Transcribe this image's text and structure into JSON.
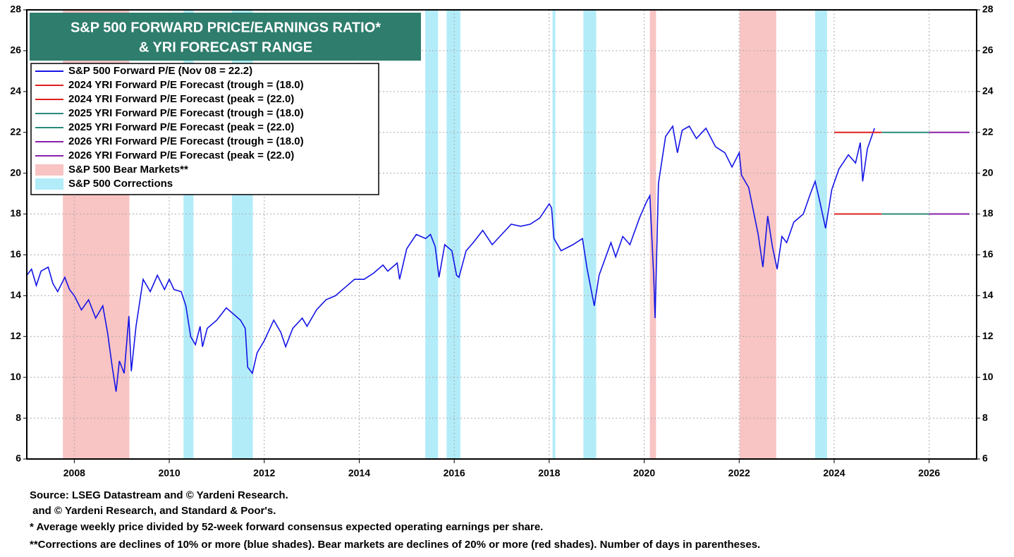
{
  "chart_data": {
    "type": "line",
    "title_lines": [
      "S&P 500 FORWARD PRICE/EARNINGS RATIO*",
      "& YRI FORECAST RANGE"
    ],
    "xlim": [
      2007,
      2027
    ],
    "xticks": [
      2008,
      2010,
      2012,
      2014,
      2016,
      2018,
      2020,
      2022,
      2024,
      2026
    ],
    "ylim": [
      6,
      28
    ],
    "yticks": [
      6,
      8,
      10,
      12,
      14,
      16,
      18,
      20,
      22,
      24,
      26,
      28
    ],
    "y2lim": [
      6,
      28
    ],
    "y2ticks": [
      6,
      8,
      10,
      12,
      14,
      16,
      18,
      20,
      22,
      24,
      26,
      28
    ],
    "grid": true,
    "legend": "upper left",
    "series": [
      {
        "name": "S&P 500 Forward P/E (Nov 08 = 22.2)",
        "color": "#1414e6",
        "x": [
          2007.0,
          2007.1,
          2007.2,
          2007.3,
          2007.45,
          2007.55,
          2007.65,
          2007.8,
          2007.9,
          2008.0,
          2008.15,
          2008.3,
          2008.45,
          2008.6,
          2008.7,
          2008.8,
          2008.88,
          2008.95,
          2009.05,
          2009.15,
          2009.2,
          2009.3,
          2009.45,
          2009.6,
          2009.75,
          2009.9,
          2010.0,
          2010.1,
          2010.25,
          2010.35,
          2010.45,
          2010.55,
          2010.65,
          2010.7,
          2010.8,
          2011.0,
          2011.2,
          2011.35,
          2011.5,
          2011.6,
          2011.65,
          2011.75,
          2011.85,
          2012.0,
          2012.2,
          2012.35,
          2012.45,
          2012.6,
          2012.8,
          2012.9,
          2013.1,
          2013.3,
          2013.5,
          2013.7,
          2013.9,
          2014.1,
          2014.3,
          2014.5,
          2014.6,
          2014.8,
          2014.85,
          2015.0,
          2015.2,
          2015.4,
          2015.5,
          2015.6,
          2015.68,
          2015.8,
          2015.95,
          2016.05,
          2016.1,
          2016.25,
          2016.4,
          2016.6,
          2016.8,
          2017.0,
          2017.2,
          2017.4,
          2017.6,
          2017.8,
          2018.0,
          2018.05,
          2018.1,
          2018.25,
          2018.5,
          2018.7,
          2018.8,
          2018.95,
          2019.05,
          2019.3,
          2019.4,
          2019.55,
          2019.7,
          2019.9,
          2020.05,
          2020.12,
          2020.2,
          2020.23,
          2020.3,
          2020.45,
          2020.6,
          2020.7,
          2020.8,
          2020.95,
          2021.1,
          2021.3,
          2021.5,
          2021.7,
          2021.85,
          2022.0,
          2022.05,
          2022.2,
          2022.4,
          2022.5,
          2022.6,
          2022.7,
          2022.8,
          2022.9,
          2023.0,
          2023.15,
          2023.35,
          2023.5,
          2023.6,
          2023.7,
          2023.82,
          2023.95,
          2024.1,
          2024.3,
          2024.45,
          2024.55,
          2024.6,
          2024.7,
          2024.85
        ],
        "values": [
          15.0,
          15.3,
          14.5,
          15.2,
          15.4,
          14.6,
          14.2,
          14.9,
          14.3,
          14.0,
          13.3,
          13.8,
          12.9,
          13.5,
          12.2,
          10.5,
          9.3,
          10.8,
          10.2,
          13.0,
          10.3,
          12.5,
          14.8,
          14.2,
          15.0,
          14.3,
          14.8,
          14.3,
          14.2,
          13.5,
          12.0,
          11.6,
          12.5,
          11.5,
          12.4,
          12.8,
          13.4,
          13.1,
          12.8,
          12.4,
          10.5,
          10.2,
          11.2,
          11.8,
          12.8,
          12.2,
          11.5,
          12.4,
          12.9,
          12.5,
          13.3,
          13.8,
          14.0,
          14.4,
          14.8,
          14.8,
          15.1,
          15.5,
          15.2,
          15.6,
          14.8,
          16.3,
          17.0,
          16.8,
          17.0,
          16.4,
          14.9,
          16.5,
          16.2,
          15.0,
          14.9,
          16.2,
          16.6,
          17.2,
          16.5,
          17.0,
          17.5,
          17.4,
          17.5,
          17.8,
          18.5,
          18.3,
          16.8,
          16.2,
          16.5,
          16.8,
          15.3,
          13.5,
          15.0,
          16.6,
          15.9,
          16.9,
          16.5,
          17.8,
          18.6,
          18.9,
          15.0,
          12.9,
          19.5,
          21.8,
          22.3,
          21.0,
          22.1,
          22.3,
          21.7,
          22.2,
          21.3,
          21.0,
          20.3,
          21.0,
          19.9,
          19.3,
          17.0,
          15.4,
          17.9,
          16.4,
          15.3,
          16.9,
          16.6,
          17.6,
          18.0,
          19.0,
          19.6,
          18.6,
          17.3,
          19.2,
          20.2,
          20.9,
          20.5,
          21.5,
          19.6,
          21.2,
          22.2
        ]
      },
      {
        "name": "2024 YRI Forward P/E Forecast (trough = (18.0)",
        "color": "#e02020",
        "x": [
          2024.0,
          2025.0
        ],
        "values": [
          18,
          18
        ]
      },
      {
        "name": "2024 YRI Forward P/E Forecast (peak = (22.0)",
        "color": "#e02020",
        "x": [
          2024.0,
          2025.0
        ],
        "values": [
          22,
          22
        ]
      },
      {
        "name": "2025 YRI Forward P/E Forecast (trough = (18.0)",
        "color": "#2a8a7a",
        "x": [
          2025.0,
          2026.0
        ],
        "values": [
          18,
          18
        ]
      },
      {
        "name": "2025 YRI Forward P/E Forecast (peak = (22.0)",
        "color": "#2a8a7a",
        "x": [
          2025.0,
          2026.0
        ],
        "values": [
          22,
          22
        ]
      },
      {
        "name": "2026 YRI Forward P/E Forecast (trough = (18.0)",
        "color": "#8a1fa8",
        "x": [
          2026.0,
          2026.85
        ],
        "values": [
          18,
          18
        ]
      },
      {
        "name": "2026 YRI Forward P/E Forecast (peak = (22.0)",
        "color": "#8a1fa8",
        "x": [
          2026.0,
          2026.85
        ],
        "values": [
          22,
          22
        ]
      }
    ],
    "shaded_regions": [
      {
        "name": "S&P 500 Bear Markets**",
        "color": "#f9c4c4",
        "ranges": [
          [
            2007.76,
            2009.16
          ],
          [
            2020.12,
            2020.25
          ],
          [
            2022.01,
            2022.78
          ]
        ]
      },
      {
        "name": "S&P 500 Corrections",
        "color": "#b3ecf9",
        "ranges": [
          [
            2010.3,
            2010.51
          ],
          [
            2011.32,
            2011.76
          ],
          [
            2015.39,
            2015.66
          ],
          [
            2015.84,
            2016.13
          ],
          [
            2018.07,
            2018.13
          ],
          [
            2018.72,
            2018.99
          ],
          [
            2023.6,
            2023.85
          ]
        ]
      }
    ],
    "notes": [
      "Source: LSEG Datastream and © Yardeni Research.",
      " and © Yardeni Research, and Standard & Poor's.",
      "* Average weekly price divided by 52-week forward consensus expected operating earnings per share.",
      "**Corrections are declines of 10% or more (blue shades). Bear markets are declines of 20% or more (red shades). Number of days in parentheses."
    ]
  }
}
